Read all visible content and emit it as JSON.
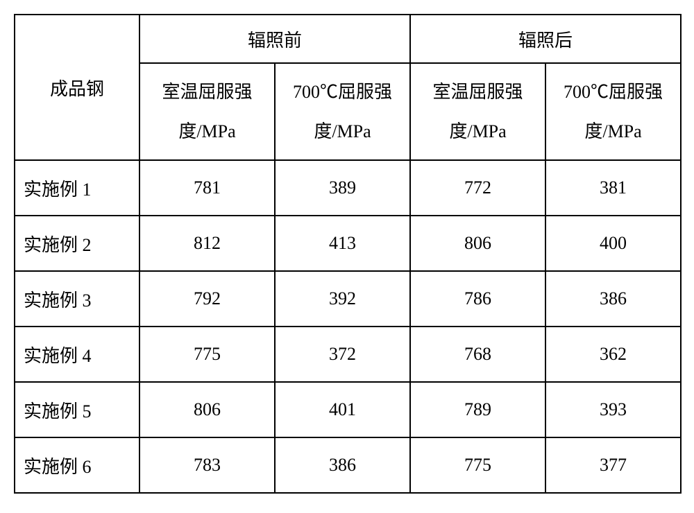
{
  "table": {
    "columns": {
      "row_header": "成品钢",
      "group1": "辐照前",
      "group2": "辐照后",
      "sub1": "室温屈服强度/MPa",
      "sub2": "700℃屈服强度/MPa",
      "sub3": "室温屈服强度/MPa",
      "sub4": "700℃屈服强度/MPa"
    },
    "rows": [
      {
        "label": "实施例 1",
        "v1": "781",
        "v2": "389",
        "v3": "772",
        "v4": "381"
      },
      {
        "label": "实施例 2",
        "v1": "812",
        "v2": "413",
        "v3": "806",
        "v4": "400"
      },
      {
        "label": "实施例 3",
        "v1": "792",
        "v2": "392",
        "v3": "786",
        "v4": "386"
      },
      {
        "label": "实施例 4",
        "v1": "775",
        "v2": "372",
        "v3": "768",
        "v4": "362"
      },
      {
        "label": "实施例 5",
        "v1": "806",
        "v2": "401",
        "v3": "789",
        "v4": "393"
      },
      {
        "label": "实施例 6",
        "v1": "783",
        "v2": "386",
        "v3": "775",
        "v4": "377"
      }
    ],
    "styling": {
      "border_color": "#000000",
      "border_width": 2,
      "background_color": "#ffffff",
      "text_color": "#000000",
      "font_family": "SimSun",
      "header_fontsize": 26,
      "cell_fontsize": 26,
      "first_col_width": 180,
      "other_col_width": 195,
      "header_top_row_height": 70,
      "header_sub_row_height": 140,
      "data_row_height": 80,
      "data_label_align": "left",
      "data_value_align": "center"
    }
  }
}
